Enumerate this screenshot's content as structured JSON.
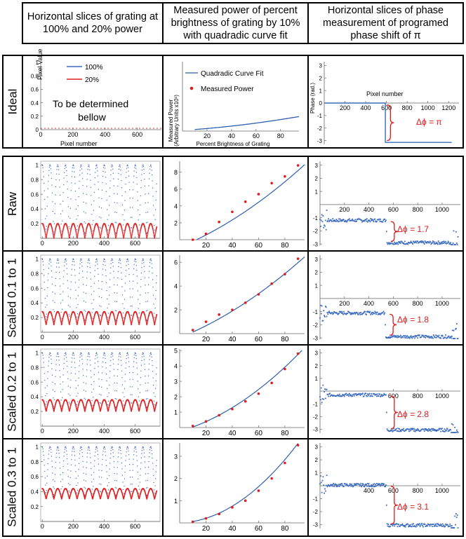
{
  "headers": {
    "col1": "Horizontal slices of grating at 100% and 20% power",
    "col2": "Measured power of percent brightness of grating by 10% with quadradic curve fit",
    "col3": "Horizontal slices of phase measurement of programed phase shift of π"
  },
  "row_labels": [
    "Ideal",
    "Raw",
    "Scaled 0.1 to 1",
    "Scaled 0.2 to 1",
    "Scaled 0.3 to 1"
  ],
  "ideal": {
    "grating_placeholder": "To be determined bellow",
    "grating_legend": [
      "100%",
      "20%"
    ],
    "grating_ylabel": "Pixel Value",
    "grating_xlabel": "Pixel number",
    "power_legend": [
      "Quadradic Curve Fit",
      "Measured Power"
    ],
    "power_ylabel": [
      "Measured Power",
      "(Arbitrary Units x10¹)"
    ],
    "power_xlabel": "Percent Brightness of Grating",
    "phase_ylabel": "Phase (rad.)",
    "phase_xlabel": "Pixel number",
    "phase_annotation": "Δϕ = π"
  },
  "phase_annotations": [
    "Δϕ = 1.7",
    "Δϕ = 1.8",
    "Δϕ = 2.8",
    "Δϕ = 3.1"
  ],
  "colors": {
    "blue": "#3a6bc0",
    "red": "#e21a1a",
    "fit": "#2d5fb0"
  },
  "chart_data": [
    {
      "id": "ideal-grating",
      "type": "line",
      "xlim": [
        0,
        750
      ],
      "ylim": [
        0,
        1
      ],
      "xticks": [
        0,
        200,
        400,
        600
      ],
      "yticks": [
        0,
        0.2,
        0.4,
        0.6,
        0.8,
        1.0
      ],
      "series": [
        {
          "name": "100%",
          "values": []
        },
        {
          "name": "20%",
          "values": []
        }
      ]
    },
    {
      "id": "ideal-power",
      "type": "line",
      "xlim": [
        0,
        95
      ],
      "ylim": [
        0,
        10
      ],
      "xticks": [
        20,
        40,
        60,
        80
      ],
      "yticks": [],
      "series": [
        {
          "name": "Quadradic Curve Fit",
          "coeffs": [
            0.1,
            0.0115,
            0.0001
          ]
        }
      ]
    },
    {
      "id": "ideal-phase",
      "type": "line",
      "xlim": [
        0,
        1300
      ],
      "ylim": [
        -3.3,
        3.3
      ],
      "xticks": [
        200,
        400,
        600,
        800,
        1000,
        1200
      ],
      "yticks": [
        3,
        2,
        1,
        0,
        -1,
        -2,
        -3
      ],
      "series": [
        {
          "name": "phase",
          "x": [
            0,
            590,
            590,
            1230
          ],
          "y": [
            0,
            0,
            -3.1416,
            -3.1416
          ]
        }
      ]
    },
    {
      "id": "raw-grating",
      "type": "scatter",
      "xlim": [
        -10,
        760
      ],
      "ylim": [
        0,
        1.05
      ],
      "xticks": [
        0,
        200,
        400,
        600
      ],
      "yticks": [
        0.2,
        0.4,
        0.6,
        0.8,
        1.0
      ],
      "series": [
        {
          "name": "100%",
          "min": 0.0,
          "max": 1.0,
          "period": 50
        },
        {
          "name": "20%",
          "min": 0.0,
          "max": 0.2,
          "period": 50
        }
      ]
    },
    {
      "id": "raw-power",
      "type": "scatter",
      "xlim": [
        0,
        95
      ],
      "ylim": [
        0,
        9.3
      ],
      "xticks": [
        20,
        40,
        60,
        80
      ],
      "yticks": [
        2,
        4,
        6,
        8
      ],
      "categories": [
        10,
        20,
        30,
        40,
        50,
        60,
        70,
        80,
        90
      ],
      "values": [
        0.0,
        0.7,
        2.1,
        3.3,
        4.5,
        5.4,
        6.7,
        7.5,
        8.8
      ],
      "fit": [
        -0.9,
        0.065,
        0.0004
      ]
    },
    {
      "id": "raw-phase",
      "type": "scatter",
      "xlim": [
        0,
        1150
      ],
      "ylim": [
        -3.1,
        3.3
      ],
      "xticks": [
        200,
        400,
        600,
        800,
        1000
      ],
      "yticks": [
        3,
        2,
        1,
        -1,
        -2,
        -3
      ],
      "series": [
        {
          "name": "phase",
          "level_before": -1.2,
          "level_after": -2.9,
          "step": 540
        }
      ]
    },
    {
      "id": "s01-grating",
      "type": "scatter",
      "xlim": [
        -10,
        760
      ],
      "ylim": [
        0,
        1.05
      ],
      "xticks": [
        0,
        200,
        400,
        600
      ],
      "yticks": [
        0.2,
        0.4,
        0.6,
        0.8,
        1.0
      ],
      "series": [
        {
          "name": "100%",
          "min": 0.1,
          "max": 1.0,
          "period": 50
        },
        {
          "name": "20%",
          "min": 0.1,
          "max": 0.28,
          "period": 50
        }
      ]
    },
    {
      "id": "s01-power",
      "type": "scatter",
      "xlim": [
        0,
        95
      ],
      "ylim": [
        0,
        6.6
      ],
      "xticks": [
        20,
        40,
        60,
        80
      ],
      "yticks": [
        2,
        4,
        6
      ],
      "categories": [
        10,
        20,
        30,
        40,
        50,
        60,
        70,
        80,
        90
      ],
      "values": [
        0.3,
        1.0,
        1.6,
        2.0,
        2.6,
        3.3,
        4.2,
        5.0,
        6.3
      ],
      "fit": [
        -0.35,
        0.045,
        0.00028
      ]
    },
    {
      "id": "s01-phase",
      "type": "scatter",
      "xlim": [
        0,
        1150
      ],
      "ylim": [
        -3.1,
        3.3
      ],
      "xticks": [
        200,
        400,
        600,
        800,
        1000
      ],
      "yticks": [
        3,
        2,
        1,
        -1,
        -2,
        -3
      ],
      "series": [
        {
          "name": "phase",
          "level_before": -1.1,
          "level_after": -2.9,
          "step": 530
        }
      ]
    },
    {
      "id": "s02-grating",
      "type": "scatter",
      "xlim": [
        -10,
        760
      ],
      "ylim": [
        0,
        1.05
      ],
      "xticks": [
        0,
        200,
        400,
        600
      ],
      "yticks": [
        0.2,
        0.4,
        0.6,
        0.8,
        1.0
      ],
      "series": [
        {
          "name": "100%",
          "min": 0.2,
          "max": 1.0,
          "period": 50
        },
        {
          "name": "20%",
          "min": 0.2,
          "max": 0.36,
          "period": 50
        }
      ]
    },
    {
      "id": "s02-power",
      "type": "scatter",
      "xlim": [
        0,
        95
      ],
      "ylim": [
        0,
        5.1
      ],
      "xticks": [
        20,
        40,
        60,
        80
      ],
      "yticks": [
        1,
        2,
        3,
        4,
        5
      ],
      "categories": [
        10,
        20,
        30,
        40,
        50,
        60,
        70,
        80,
        90
      ],
      "values": [
        0.1,
        0.4,
        0.8,
        1.2,
        1.7,
        2.2,
        2.9,
        3.8,
        4.8
      ],
      "fit": [
        -0.25,
        0.025,
        0.00034
      ]
    },
    {
      "id": "s02-phase",
      "type": "scatter",
      "xlim": [
        0,
        1150
      ],
      "ylim": [
        -3.3,
        3.3
      ],
      "xticks": [
        600,
        800,
        1000
      ],
      "yticks": [
        3,
        2,
        1,
        -1,
        -2,
        -3
      ],
      "series": [
        {
          "name": "phase",
          "level_before": -0.3,
          "level_after": -3.05,
          "step": 540
        }
      ]
    },
    {
      "id": "s03-grating",
      "type": "scatter",
      "xlim": [
        -10,
        760
      ],
      "ylim": [
        0,
        1.05
      ],
      "xticks": [
        0,
        200,
        400,
        600
      ],
      "yticks": [
        0.2,
        0.4,
        0.6,
        0.8,
        1.0
      ],
      "series": [
        {
          "name": "100%",
          "min": 0.3,
          "max": 1.0,
          "period": 50
        },
        {
          "name": "20%",
          "min": 0.3,
          "max": 0.44,
          "period": 50
        }
      ]
    },
    {
      "id": "s03-power",
      "type": "scatter",
      "xlim": [
        0,
        95
      ],
      "ylim": [
        0,
        3.6
      ],
      "xticks": [
        20,
        40,
        60,
        80
      ],
      "yticks": [
        1,
        2,
        3
      ],
      "categories": [
        10,
        20,
        30,
        40,
        50,
        60,
        70,
        80,
        90
      ],
      "values": [
        0.05,
        0.2,
        0.4,
        0.7,
        1.0,
        1.45,
        2.0,
        2.7,
        3.5
      ],
      "fit": [
        0.0,
        0.002,
        0.00042
      ]
    },
    {
      "id": "s03-phase",
      "type": "scatter",
      "xlim": [
        0,
        1150
      ],
      "ylim": [
        -3.3,
        3.3
      ],
      "xticks": [
        400,
        600,
        800,
        1000
      ],
      "yticks": [
        3,
        2,
        1,
        -1,
        -2,
        -3
      ],
      "series": [
        {
          "name": "phase",
          "level_before": 0.05,
          "level_after": -3.05,
          "step": 540
        }
      ]
    }
  ]
}
